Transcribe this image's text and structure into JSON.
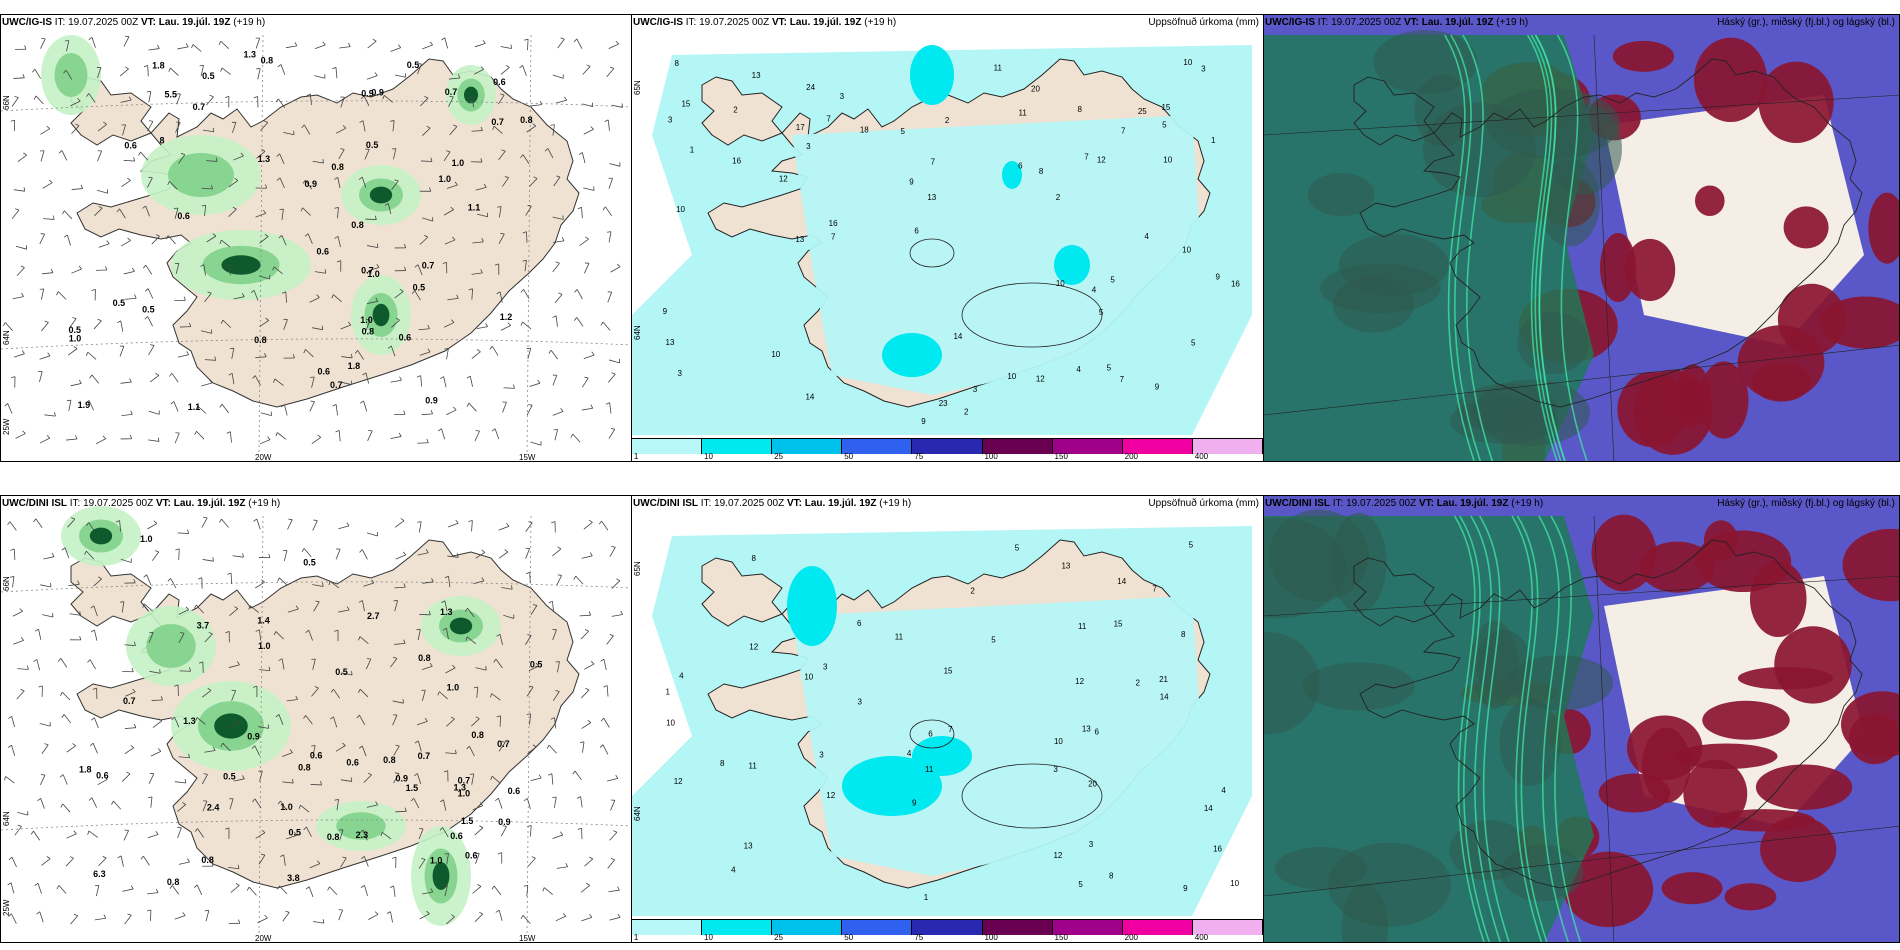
{
  "colors": {
    "land": "#f0e2d2",
    "precip_light": "#c5f2c5",
    "precip_mid": "#7fd18a",
    "precip_dark": "#0e5a2c",
    "sea_rain": "#b4f5f5",
    "cloud_high_green": "#1f7a55",
    "cloud_mid_red": "#8a1530",
    "cloud_low_blue": "#5a58c8"
  },
  "panels": {
    "p1": {
      "model": "UWC/IG-IS",
      "it_label": "IT:",
      "it_value": "19.07.2025 00Z",
      "vt_label": "VT:",
      "vt_value": "Lau. 19.júl. 19Z",
      "lead": "(+19 h)",
      "lon_labels": [
        "20W",
        "15W"
      ],
      "lat_labels": [
        "66N",
        "64N",
        "25W"
      ],
      "values": [
        "0.9",
        "0.8",
        "0.6",
        "0.5",
        "0.8",
        "0.6",
        "0.6",
        "0.8",
        "0.6",
        "1.0",
        "1.0",
        "0.5",
        "1.0",
        "0.5",
        "0.9",
        "5.5",
        "1.1",
        "1.0",
        "0.5",
        "0.7",
        "0.6",
        "1.2",
        "0.8",
        "0.5",
        "0.5",
        "0.7",
        "0.5",
        "1.8",
        "0.8",
        "1.0",
        "0.7",
        "0.6",
        "0.8",
        "0.7",
        "0.7",
        "1.1",
        "1.3",
        "1.8",
        "1.9",
        "0.9",
        "8",
        "1.3",
        "0.7",
        "0.9"
      ]
    },
    "p2": {
      "model": "UWC/IG-IS",
      "it_label": "IT:",
      "it_value": "19.07.2025 00Z",
      "vt_label": "VT:",
      "vt_value": "Lau. 19.júl. 19Z",
      "lead": "(+19 h)",
      "right_title": "Uppsöfnuð úrkoma (mm)",
      "lat_labels": [
        "65N",
        "64N"
      ],
      "values": [
        "1",
        "3",
        "2",
        "23",
        "25",
        "9",
        "10",
        "7",
        "15",
        "16",
        "9",
        "7",
        "7",
        "10",
        "10",
        "14",
        "16",
        "5",
        "9",
        "10",
        "7",
        "10",
        "13",
        "14",
        "8",
        "12",
        "5",
        "20",
        "13",
        "13",
        "9",
        "12",
        "10",
        "16",
        "15",
        "24",
        "18",
        "11",
        "11",
        "13",
        "12",
        "17",
        "9",
        "5",
        "3",
        "1",
        "3",
        "4",
        "5",
        "5",
        "7",
        "8",
        "6",
        "4",
        "2",
        "3",
        "3",
        "5",
        "4",
        "6",
        "7",
        "8",
        "10",
        "3",
        "2",
        "2"
      ],
      "colorbar": [
        "1",
        "10",
        "25",
        "50",
        "75",
        "100",
        "150",
        "200",
        "400"
      ]
    },
    "p3": {
      "model": "UWC/IG-IS",
      "it_label": "IT:",
      "it_value": "19.07.2025 00Z",
      "vt_label": "VT:",
      "vt_value": "Lau. 19.júl. 19Z",
      "lead": "(+19 h)",
      "right_title": "Háský (gr.), miðský (fj.bl.) og lágský (bl.)"
    },
    "p4": {
      "model": "UWC/DINI ISL",
      "it_label": "IT:",
      "it_value": "19.07.2025 00Z",
      "vt_label": "VT:",
      "vt_value": "Lau. 19.júl. 19Z",
      "lead": "(+19 h)",
      "lon_labels": [
        "20W",
        "15W"
      ],
      "lat_labels": [
        "66N",
        "64N",
        "25W"
      ],
      "values": [
        "0.5",
        "2.3",
        "0.8",
        "0.8",
        "1.0",
        "0.6",
        "1.3",
        "0.6",
        "3.8",
        "1.4",
        "1.0",
        "0.8",
        "0.8",
        "0.9",
        "0.5",
        "1.8",
        "0.7",
        "0.8",
        "1.0",
        "0.6",
        "6.3",
        "3.7",
        "2.4",
        "0.5",
        "1.5",
        "0.6",
        "1.3",
        "1.3",
        "1.5",
        "0.6",
        "0.7",
        "0.6",
        "0.9",
        "0.5",
        "0.7",
        "1.0",
        "1.0",
        "0.7",
        "0.8",
        "0.5",
        "1.0",
        "0.9",
        "0.8",
        "2.7"
      ]
    },
    "p5": {
      "model": "UWC/DINI ISL",
      "it_label": "IT:",
      "it_value": "19.07.2025 00Z",
      "vt_label": "VT:",
      "vt_value": "Lau. 19.júl. 19Z",
      "lead": "(+19 h)",
      "right_title": "Uppsöfnuð úrkoma (mm)",
      "lat_labels": [
        "65N",
        "64N"
      ],
      "values": [
        "3",
        "4",
        "2",
        "14",
        "12",
        "15",
        "21",
        "15",
        "16",
        "8",
        "13",
        "10",
        "12",
        "20",
        "12",
        "9",
        "7",
        "8",
        "14",
        "11",
        "11",
        "10",
        "12",
        "13",
        "14",
        "13",
        "12",
        "11",
        "10",
        "11",
        "8",
        "5",
        "4",
        "3",
        "3",
        "4",
        "5",
        "7",
        "6",
        "5",
        "4",
        "3",
        "2",
        "1",
        "1",
        "6",
        "5",
        "3",
        "6",
        "8",
        "9",
        "10"
      ],
      "colorbar": [
        "1",
        "10",
        "25",
        "50",
        "75",
        "100",
        "150",
        "200",
        "400"
      ]
    },
    "p6": {
      "model": "UWC/DINI ISL",
      "it_label": "IT:",
      "it_value": "19.07.2025 00Z",
      "vt_label": "VT:",
      "vt_value": "Lau. 19.júl. 19Z",
      "lead": "(+19 h)",
      "right_title": "Háský (gr.), miðský (fj.bl.) og lágský (bl.)"
    }
  },
  "colorbar_colors": [
    "#b8f7f7",
    "#00e8f0",
    "#00c0ec",
    "#3060ee",
    "#2828b0",
    "#6a0050",
    "#a0008a",
    "#f000a0",
    "#f0b0f0"
  ]
}
